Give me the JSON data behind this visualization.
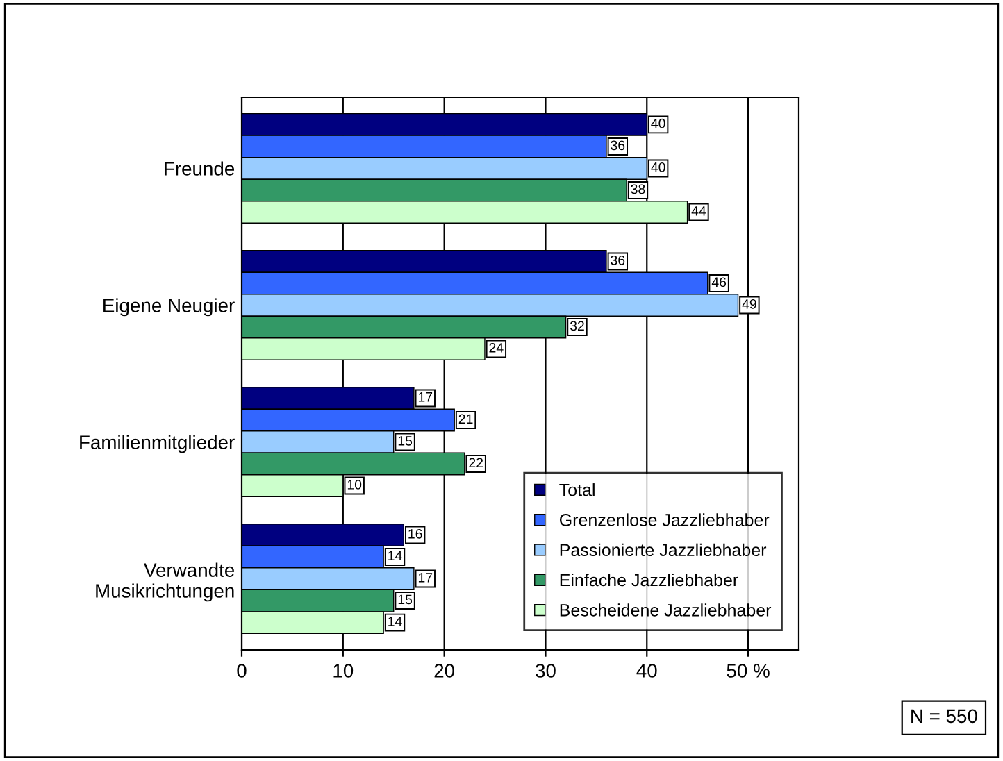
{
  "chart_data": {
    "type": "bar",
    "orientation": "horizontal",
    "categories": [
      "Freunde",
      "Eigene Neugier",
      "Familienmitglieder",
      "Verwandte\nMusikrichtungen"
    ],
    "series": [
      {
        "name": "Total",
        "color": "#000080",
        "values": [
          40,
          36,
          17,
          16
        ]
      },
      {
        "name": "Grenzenlose Jazzliebhaber",
        "color": "#3366ff",
        "values": [
          36,
          46,
          21,
          14
        ]
      },
      {
        "name": "Passionierte Jazzliebhaber",
        "color": "#99ccff",
        "values": [
          40,
          49,
          15,
          17
        ]
      },
      {
        "name": "Einfache Jazzliebhaber",
        "color": "#339966",
        "values": [
          38,
          32,
          22,
          15
        ]
      },
      {
        "name": "Bescheidene Jazzliebhaber",
        "color": "#ccffcc",
        "values": [
          44,
          24,
          10,
          14
        ]
      }
    ],
    "xlim": [
      0,
      55
    ],
    "xticks": [
      0,
      10,
      20,
      30,
      40,
      {
        "value": 50,
        "label": "50 %"
      }
    ],
    "grid": "x",
    "legend": "bottom right",
    "data_labels": true,
    "annotations": [
      "N = 550"
    ]
  }
}
